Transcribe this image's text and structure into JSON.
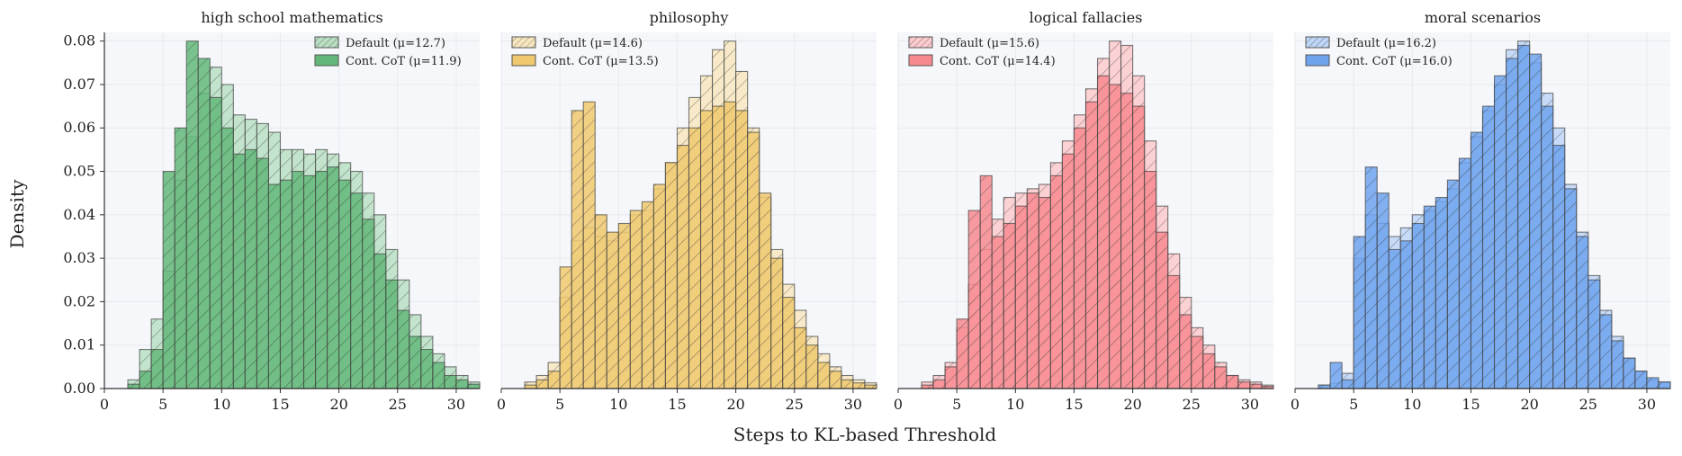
{
  "figure": {
    "xlabel": "Steps to KL-based Threshold",
    "ylabel": "Density"
  },
  "chart_data": {
    "type": "histogram",
    "shared_y": true,
    "xlim": [
      0,
      32
    ],
    "ylim": [
      0,
      0.082
    ],
    "x_ticks": [
      0,
      5,
      10,
      15,
      20,
      25,
      30
    ],
    "y_ticks": [
      0.0,
      0.01,
      0.02,
      0.03,
      0.04,
      0.05,
      0.06,
      0.07,
      0.08
    ],
    "bin_width": 1,
    "bin_start": 2,
    "grid": true,
    "legend_placement": "top-right",
    "panels": [
      {
        "title": "high school mathematics",
        "color": "#63b879",
        "series": [
          {
            "name": "Default (μ=12.7)",
            "style": "light",
            "values": [
              0.002,
              0.009,
              0.016,
              0.027,
              0.048,
              0.058,
              0.068,
              0.074,
              0.07,
              0.063,
              0.062,
              0.061,
              0.059,
              0.055,
              0.055,
              0.054,
              0.055,
              0.054,
              0.052,
              0.05,
              0.045,
              0.04,
              0.032,
              0.025,
              0.017,
              0.012,
              0.008,
              0.005,
              0.003,
              0.0015,
              0.001
            ]
          },
          {
            "name": "Cont. CoT (μ=11.9)",
            "style": "dark",
            "values": [
              0.001,
              0.004,
              0.009,
              0.05,
              0.06,
              0.08,
              0.076,
              0.067,
              0.06,
              0.054,
              0.055,
              0.053,
              0.047,
              0.048,
              0.05,
              0.049,
              0.05,
              0.051,
              0.048,
              0.045,
              0.039,
              0.031,
              0.025,
              0.018,
              0.012,
              0.009,
              0.006,
              0.003,
              0.002,
              0.001,
              0.0005
            ]
          }
        ]
      },
      {
        "title": "philosophy",
        "color": "#f0c96e",
        "series": [
          {
            "name": "Default (μ=14.6)",
            "style": "light",
            "values": [
              0.0015,
              0.003,
              0.006,
              0.021,
              0.034,
              0.037,
              0.035,
              0.034,
              0.036,
              0.04,
              0.041,
              0.046,
              0.052,
              0.06,
              0.067,
              0.072,
              0.078,
              0.08,
              0.073,
              0.06,
              0.044,
              0.032,
              0.024,
              0.018,
              0.012,
              0.008,
              0.005,
              0.003,
              0.002,
              0.0013,
              0.0008
            ]
          },
          {
            "name": "Cont. CoT (μ=13.5)",
            "style": "dark",
            "values": [
              0.0008,
              0.002,
              0.004,
              0.028,
              0.064,
              0.066,
              0.04,
              0.036,
              0.038,
              0.041,
              0.043,
              0.047,
              0.052,
              0.056,
              0.06,
              0.064,
              0.065,
              0.066,
              0.064,
              0.059,
              0.045,
              0.03,
              0.021,
              0.014,
              0.01,
              0.006,
              0.004,
              0.002,
              0.0013,
              0.0008,
              0.0004
            ]
          }
        ]
      },
      {
        "title": "logical fallacies",
        "color": "#f78a8f",
        "series": [
          {
            "name": "Default (μ=15.6)",
            "style": "light",
            "values": [
              0.0015,
              0.003,
              0.006,
              0.014,
              0.024,
              0.032,
              0.039,
              0.044,
              0.045,
              0.046,
              0.047,
              0.052,
              0.057,
              0.063,
              0.069,
              0.076,
              0.08,
              0.079,
              0.072,
              0.057,
              0.042,
              0.031,
              0.021,
              0.014,
              0.01,
              0.006,
              0.003,
              0.002,
              0.0015,
              0.0008,
              0.0005
            ]
          },
          {
            "name": "Cont. CoT (μ=14.4)",
            "style": "dark",
            "values": [
              0.0008,
              0.002,
              0.005,
              0.016,
              0.041,
              0.049,
              0.035,
              0.038,
              0.042,
              0.045,
              0.044,
              0.049,
              0.054,
              0.06,
              0.066,
              0.072,
              0.07,
              0.068,
              0.065,
              0.05,
              0.036,
              0.026,
              0.017,
              0.012,
              0.008,
              0.005,
              0.003,
              0.0015,
              0.001,
              0.0005,
              0.0003
            ]
          }
        ]
      },
      {
        "title": "moral scenarios",
        "color": "#6fa3ee",
        "series": [
          {
            "name": "Default (μ=16.2)",
            "style": "light",
            "values": [
              0.0008,
              0.0012,
              0.0035,
              0.03,
              0.04,
              0.038,
              0.035,
              0.037,
              0.04,
              0.041,
              0.043,
              0.046,
              0.052,
              0.058,
              0.064,
              0.07,
              0.078,
              0.08,
              0.075,
              0.068,
              0.06,
              0.047,
              0.036,
              0.026,
              0.018,
              0.012,
              0.007,
              0.004,
              0.002,
              0.0015,
              0.001
            ]
          },
          {
            "name": "Cont. CoT (μ=16.0)",
            "style": "dark",
            "values": [
              0.0008,
              0.006,
              0.002,
              0.035,
              0.051,
              0.045,
              0.032,
              0.034,
              0.038,
              0.042,
              0.044,
              0.048,
              0.053,
              0.059,
              0.065,
              0.072,
              0.076,
              0.079,
              0.077,
              0.065,
              0.056,
              0.046,
              0.035,
              0.025,
              0.017,
              0.011,
              0.007,
              0.004,
              0.0025,
              0.0015,
              0.0025
            ]
          }
        ]
      }
    ]
  }
}
